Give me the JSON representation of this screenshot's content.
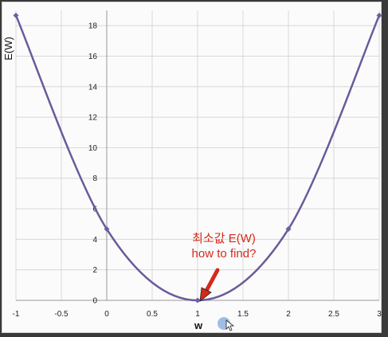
{
  "colors": {
    "line": "#6b5a9a",
    "marker": "#6b5fa8",
    "grid": "#d8d8d8",
    "annotation": "#d42a1a",
    "cursor": "#8fb2e0"
  },
  "chart_data": {
    "type": "line",
    "title": "",
    "xlabel": "w",
    "ylabel": "E(W)",
    "xlim": [
      -1,
      3
    ],
    "ylim": [
      0,
      19
    ],
    "x_ticks": [
      "-1",
      "-0.5",
      "0",
      "0.5",
      "1",
      "1.5",
      "2",
      "2.5",
      "3"
    ],
    "x_tick_values": [
      -1,
      -0.5,
      0,
      0.5,
      1,
      1.5,
      2,
      2.5,
      3
    ],
    "y_ticks": [
      "0",
      "2",
      "4",
      "6",
      "8",
      "10",
      "12",
      "14",
      "16",
      "18"
    ],
    "y_tick_values": [
      0,
      2,
      4,
      6,
      8,
      10,
      12,
      14,
      16,
      18
    ],
    "grid": true,
    "series": [
      {
        "x": [
          -1,
          0,
          1,
          2,
          3
        ],
        "y": [
          18.67,
          4.67,
          0,
          4.67,
          18.67
        ],
        "markers": true,
        "smooth": true
      }
    ],
    "annotations": [
      {
        "text_line1": "최소값 E(W)",
        "text_line2": "how to find?",
        "arrow_to": {
          "x": 1,
          "y": 0
        }
      }
    ]
  }
}
